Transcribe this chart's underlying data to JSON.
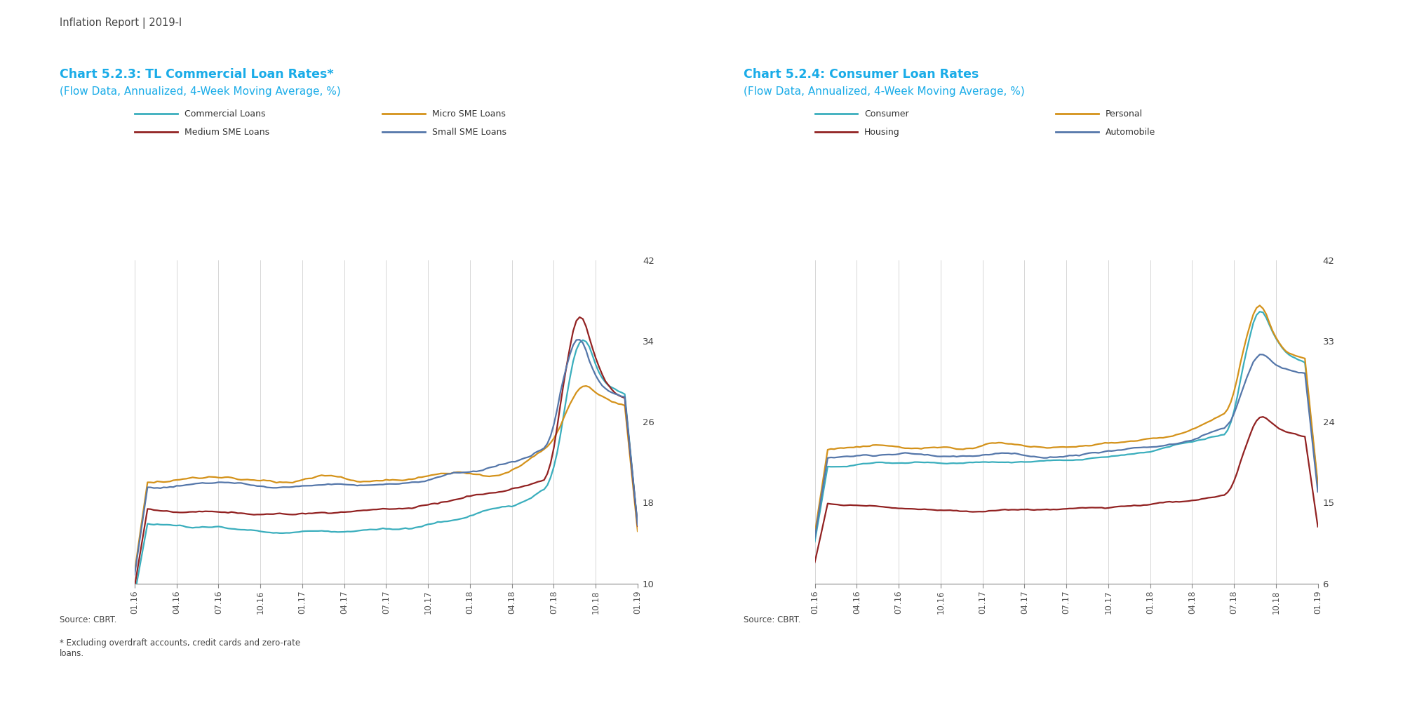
{
  "chart1": {
    "title_line1": "Chart 5.2.3: TL Commercial Loan Rates*",
    "title_line2": "(Flow Data, Annualized, 4-Week Moving Average, %)",
    "title_color": "#1AACE8",
    "ylim": [
      10,
      42
    ],
    "yticks": [
      10,
      18,
      26,
      34,
      42
    ],
    "source": "Source: CBRT.",
    "footnote": "* Excluding overdraft accounts, credit cards and zero-rate\nloans.",
    "legend": [
      {
        "label": "Commercial Loans",
        "color": "#3AAEBD"
      },
      {
        "label": "Micro SME Loans",
        "color": "#D4921A"
      },
      {
        "label": "Medium SME Loans",
        "color": "#922222"
      },
      {
        "label": "Small SME Loans",
        "color": "#5577AA"
      }
    ]
  },
  "chart2": {
    "title_line1": "Chart 5.2.4: Consumer Loan Rates",
    "title_line2": "(Flow Data, Annualized, 4-Week Moving Average, %)",
    "title_color": "#1AACE8",
    "ylim": [
      6,
      42
    ],
    "yticks": [
      6,
      15,
      24,
      33,
      42
    ],
    "source": "Source: CBRT.",
    "legend": [
      {
        "label": "Consumer",
        "color": "#3AAEBD"
      },
      {
        "label": "Personal",
        "color": "#D4921A"
      },
      {
        "label": "Housing",
        "color": "#922222"
      },
      {
        "label": "Automobile",
        "color": "#5577AA"
      }
    ]
  },
  "header": "Inflation Report | 2019-I",
  "background_color": "#FFFFFF",
  "grid_color": "#D0D0D0",
  "xtick_labels": [
    "01.16",
    "04.16",
    "07.16",
    "10.16",
    "01.17",
    "04.17",
    "07.17",
    "10.17",
    "01.18",
    "04.18",
    "07.18",
    "10.18",
    "01.19"
  ]
}
